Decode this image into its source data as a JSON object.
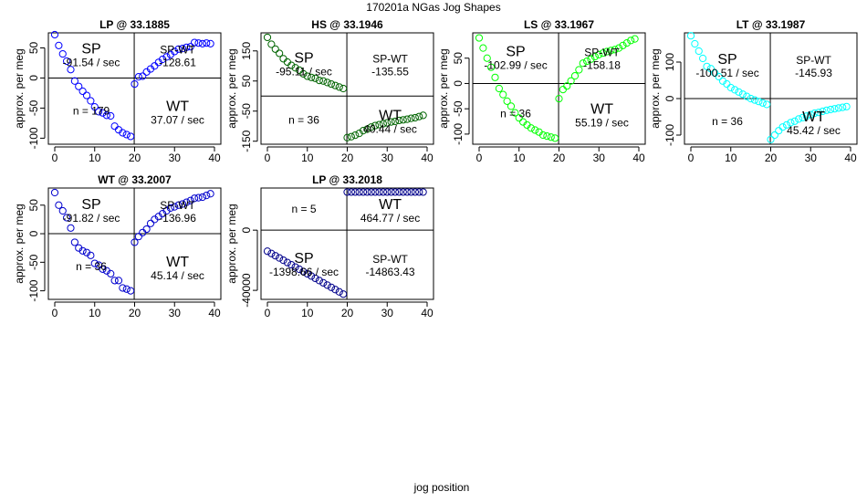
{
  "title": "170201a   NGas Jog Shapes",
  "xlabel": "jog position",
  "chart_data": [
    {
      "type": "scatter",
      "title": "LP @ 33.1885",
      "ylabel": "approx. per meg",
      "xlim": [
        0,
        40
      ],
      "ylim": [
        -110,
        75
      ],
      "xticks": [
        0,
        10,
        20,
        30,
        40
      ],
      "yticks": [
        -100,
        -50,
        0,
        50
      ],
      "divider_x": 19.9,
      "divider_y": 0,
      "color": "#0000ff",
      "series": [
        {
          "x": [
            0,
            1,
            2,
            3,
            4,
            5,
            6,
            7,
            8,
            9,
            10,
            11,
            12,
            13,
            14,
            15,
            16,
            17,
            18,
            19
          ],
          "y": [
            72,
            54,
            40,
            28,
            14,
            -5,
            -14,
            -22,
            -29,
            -38,
            -48,
            -56,
            -58,
            -62,
            -63,
            -80,
            -86,
            -91,
            -94,
            -97
          ]
        },
        {
          "x": [
            20,
            21,
            22,
            23,
            24,
            25,
            26,
            27,
            28,
            29,
            30,
            31,
            32,
            33,
            34,
            35,
            36,
            37,
            38,
            39
          ],
          "y": [
            -10,
            2,
            3,
            10,
            15,
            20,
            26,
            31,
            35,
            39,
            44,
            48,
            49,
            51,
            52,
            59,
            58,
            57,
            58,
            57
          ]
        }
      ],
      "labels": {
        "sp": "SP",
        "sp_rate": "-91.54 / sec",
        "spwt": "SP-WT",
        "spwt_val": "-128.61",
        "wt": "WT",
        "wt_rate": "37.07 / sec",
        "n": "n = 179"
      }
    },
    {
      "type": "scatter",
      "title": "HS @ 33.1946",
      "ylabel": "approx. per meg",
      "xlim": [
        0,
        40
      ],
      "ylim": [
        -160,
        210
      ],
      "xticks": [
        0,
        10,
        20,
        30,
        40
      ],
      "yticks": [
        -150,
        -50,
        50,
        150
      ],
      "divider_x": 19.9,
      "divider_y": 0,
      "color": "#006400",
      "series": [
        {
          "x": [
            0,
            1,
            2,
            3,
            4,
            5,
            6,
            7,
            8,
            9,
            10,
            11,
            12,
            13,
            14,
            15,
            16,
            17,
            18,
            19
          ],
          "y": [
            195,
            172,
            156,
            142,
            124,
            113,
            102,
            94,
            86,
            74,
            66,
            62,
            59,
            52,
            50,
            45,
            40,
            35,
            30,
            25
          ]
        },
        {
          "x": [
            20,
            21,
            22,
            23,
            24,
            25,
            26,
            27,
            28,
            29,
            30,
            31,
            32,
            33,
            34,
            35,
            36,
            37,
            38,
            39
          ],
          "y": [
            -138,
            -135,
            -130,
            -124,
            -115,
            -110,
            -103,
            -98,
            -95,
            -92,
            -89,
            -86,
            -84,
            -81,
            -79,
            -77,
            -74,
            -72,
            -68,
            -64
          ]
        }
      ],
      "labels": {
        "sp": "SP",
        "sp_rate": "-95.11 / sec",
        "spwt": "SP-WT",
        "spwt_val": "-135.55",
        "wt": "WT",
        "wt_rate": "40.44 / sec",
        "n": "n = 36"
      }
    },
    {
      "type": "scatter",
      "title": "LS @ 33.1967",
      "ylabel": "approx. per meg",
      "xlim": [
        0,
        40
      ],
      "ylim": [
        -120,
        100
      ],
      "xticks": [
        0,
        10,
        20,
        30,
        40
      ],
      "yticks": [
        -100,
        -50,
        0,
        50
      ],
      "divider_x": 19.9,
      "divider_y": 0,
      "color": "#00ff00",
      "series": [
        {
          "x": [
            0,
            1,
            2,
            3,
            4,
            5,
            6,
            7,
            8,
            9,
            10,
            11,
            12,
            13,
            14,
            15,
            16,
            17,
            18,
            19
          ],
          "y": [
            90,
            70,
            50,
            32,
            12,
            -10,
            -22,
            -35,
            -45,
            -58,
            -68,
            -76,
            -82,
            -88,
            -92,
            -96,
            -102,
            -104,
            -106,
            -108
          ]
        },
        {
          "x": [
            20,
            21,
            22,
            23,
            24,
            25,
            26,
            27,
            28,
            29,
            30,
            31,
            32,
            33,
            34,
            35,
            36,
            37,
            38,
            39
          ],
          "y": [
            -30,
            -12,
            -5,
            5,
            15,
            27,
            40,
            44,
            48,
            53,
            57,
            60,
            63,
            65,
            67,
            70,
            75,
            80,
            85,
            88
          ]
        }
      ],
      "labels": {
        "sp": "SP",
        "sp_rate": "-102.99 / sec",
        "spwt": "SP-WT",
        "spwt_val": "-158.18",
        "wt": "WT",
        "wt_rate": "55.19 / sec",
        "n": "n = 36"
      }
    },
    {
      "type": "scatter",
      "title": "LT @ 33.1987",
      "ylabel": "approx. per meg",
      "xlim": [
        0,
        40
      ],
      "ylim": [
        -125,
        180
      ],
      "xticks": [
        0,
        10,
        20,
        30,
        40
      ],
      "yticks": [
        -100,
        0,
        100
      ],
      "divider_x": 19.9,
      "divider_y": 0,
      "color": "#00ffff",
      "series": [
        {
          "x": [
            0,
            1,
            2,
            3,
            4,
            5,
            6,
            7,
            8,
            9,
            10,
            11,
            12,
            13,
            14,
            15,
            16,
            17,
            18,
            19
          ],
          "y": [
            172,
            150,
            130,
            110,
            88,
            82,
            70,
            60,
            48,
            40,
            30,
            24,
            18,
            12,
            6,
            0,
            -4,
            -8,
            -12,
            -16
          ]
        },
        {
          "x": [
            20,
            21,
            22,
            23,
            24,
            25,
            26,
            27,
            28,
            29,
            30,
            31,
            32,
            33,
            34,
            35,
            36,
            37,
            38,
            39
          ],
          "y": [
            -112,
            -100,
            -88,
            -78,
            -72,
            -66,
            -62,
            -56,
            -52,
            -48,
            -44,
            -40,
            -38,
            -35,
            -32,
            -30,
            -28,
            -26,
            -24,
            -22
          ]
        }
      ],
      "labels": {
        "sp": "SP",
        "sp_rate": "-100.51 / sec",
        "spwt": "SP-WT",
        "spwt_val": "-145.93",
        "wt": "WT",
        "wt_rate": "45.42 / sec",
        "n": "n = 36"
      }
    },
    {
      "type": "scatter",
      "title": "WT @ 33.2007",
      "ylabel": "approx. per meg",
      "xlim": [
        0,
        40
      ],
      "ylim": [
        -115,
        80
      ],
      "xticks": [
        0,
        10,
        20,
        30,
        40
      ],
      "yticks": [
        -100,
        -50,
        0,
        50
      ],
      "divider_x": 19.9,
      "divider_y": 0,
      "color": "#0000cd",
      "series": [
        {
          "x": [
            0,
            1,
            2,
            3,
            4,
            5,
            6,
            7,
            8,
            9,
            10,
            11,
            12,
            13,
            14,
            15,
            16,
            17,
            18,
            19
          ],
          "y": [
            72,
            50,
            40,
            28,
            10,
            -15,
            -25,
            -30,
            -33,
            -38,
            -52,
            -55,
            -62,
            -65,
            -70,
            -82,
            -82,
            -95,
            -97,
            -100
          ]
        },
        {
          "x": [
            20,
            21,
            22,
            23,
            24,
            25,
            26,
            27,
            28,
            29,
            30,
            31,
            32,
            33,
            34,
            35,
            36,
            37,
            38,
            39
          ],
          "y": [
            -15,
            -5,
            2,
            8,
            18,
            25,
            30,
            35,
            40,
            45,
            47,
            50,
            52,
            55,
            58,
            62,
            63,
            64,
            67,
            70
          ]
        }
      ],
      "labels": {
        "sp": "SP",
        "sp_rate": "-91.82 / sec",
        "spwt": "SP-WT",
        "spwt_val": "-136.96",
        "wt": "WT",
        "wt_rate": "45.14 / sec",
        "n": "n = 36"
      }
    },
    {
      "type": "scatter",
      "title": "LP @ 33.2018",
      "ylabel": "approx. per meg",
      "xlim": [
        0,
        40
      ],
      "ylim": [
        -46000,
        28000
      ],
      "xticks": [
        0,
        10,
        20,
        30,
        40
      ],
      "yticks": [
        -40000,
        0
      ],
      "divider_x": 19.9,
      "divider_y": 0,
      "color": "#00008b",
      "series": [
        {
          "x": [
            0,
            1,
            2,
            3,
            4,
            5,
            6,
            7,
            8,
            9,
            10,
            11,
            12,
            13,
            14,
            15,
            16,
            17,
            18,
            19
          ],
          "y": [
            -14000,
            -15500,
            -17000,
            -18500,
            -20000,
            -21500,
            -23000,
            -24500,
            -26000,
            -27500,
            -29000,
            -30500,
            -32000,
            -33500,
            -35000,
            -36500,
            -38000,
            -39500,
            -41000,
            -42500
          ]
        },
        {
          "x": [
            20,
            21,
            22,
            23,
            24,
            25,
            26,
            27,
            28,
            29,
            30,
            31,
            32,
            33,
            34,
            35,
            36,
            37,
            38,
            39
          ],
          "y": [
            25300,
            25300,
            25300,
            25300,
            25300,
            25300,
            25300,
            25300,
            25300,
            25300,
            25300,
            25300,
            25300,
            25300,
            25300,
            25300,
            25300,
            25300,
            25300,
            25300
          ]
        }
      ],
      "labels": {
        "sp": "SP",
        "sp_rate": "-1398.66 / sec",
        "spwt": "SP-WT",
        "spwt_val": "-14863.43",
        "wt": "WT",
        "wt_rate": "464.77 / sec",
        "n": "n = 5"
      }
    }
  ]
}
